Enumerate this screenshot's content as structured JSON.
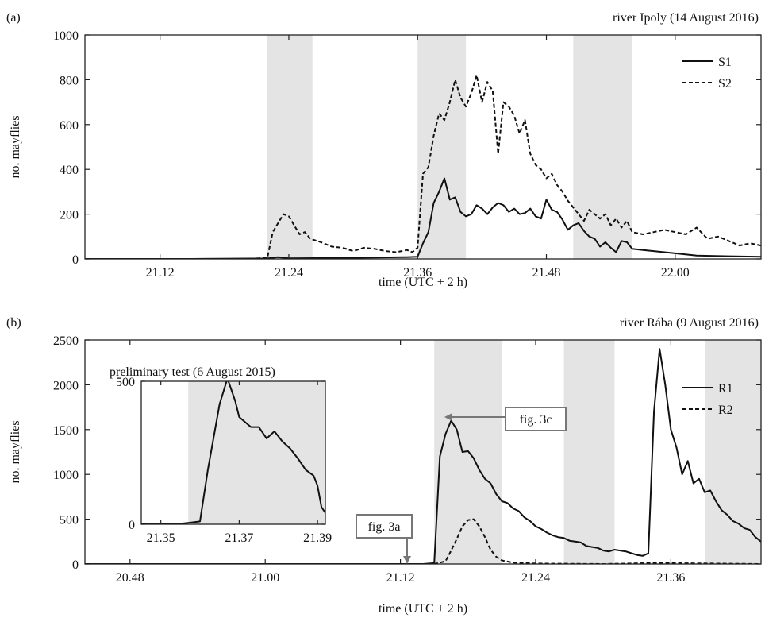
{
  "colors": {
    "shade": "#e3e4e3",
    "line": "#111111",
    "box": "#777777"
  },
  "chart_data": [
    {
      "panel_label": "(a)",
      "type": "line",
      "title": "river Ipoly (14 August 2016)",
      "xlabel": "time (UTC + 2 h)",
      "ylabel": "no. mayflies",
      "xlim": [
        21.05,
        22.08
      ],
      "ylim": [
        0,
        1000
      ],
      "xticks": [
        21.12,
        21.24,
        21.36,
        21.48,
        22.0
      ],
      "yticks": [
        0,
        200,
        400,
        600,
        800,
        1000
      ],
      "grid": false,
      "legend": "top-right",
      "shaded": [
        [
          21.22,
          21.262
        ],
        [
          21.36,
          21.405
        ],
        [
          21.505,
          21.56
        ]
      ],
      "series": [
        {
          "name": "S1",
          "style": "solid",
          "points": [
            [
              21.05,
              0
            ],
            [
              21.15,
              0
            ],
            [
              21.22,
              2
            ],
            [
              21.23,
              8
            ],
            [
              21.24,
              3
            ],
            [
              21.3,
              5
            ],
            [
              21.35,
              8
            ],
            [
              21.36,
              10
            ],
            [
              21.365,
              70
            ],
            [
              21.37,
              120
            ],
            [
              21.375,
              250
            ],
            [
              21.38,
              300
            ],
            [
              21.385,
              360
            ],
            [
              21.39,
              265
            ],
            [
              21.395,
              275
            ],
            [
              21.4,
              210
            ],
            [
              21.405,
              190
            ],
            [
              21.41,
              200
            ],
            [
              21.415,
              240
            ],
            [
              21.42,
              225
            ],
            [
              21.425,
              200
            ],
            [
              21.43,
              230
            ],
            [
              21.435,
              250
            ],
            [
              21.44,
              240
            ],
            [
              21.445,
              210
            ],
            [
              21.45,
              225
            ],
            [
              21.455,
              200
            ],
            [
              21.46,
              205
            ],
            [
              21.465,
              225
            ],
            [
              21.47,
              190
            ],
            [
              21.475,
              180
            ],
            [
              21.48,
              265
            ],
            [
              21.485,
              220
            ],
            [
              21.49,
              210
            ],
            [
              21.495,
              175
            ],
            [
              21.5,
              130
            ],
            [
              21.505,
              150
            ],
            [
              21.51,
              160
            ],
            [
              21.515,
              125
            ],
            [
              21.52,
              100
            ],
            [
              21.525,
              90
            ],
            [
              21.53,
              55
            ],
            [
              21.535,
              75
            ],
            [
              21.54,
              50
            ],
            [
              21.545,
              30
            ],
            [
              21.55,
              80
            ],
            [
              21.555,
              75
            ],
            [
              21.56,
              45
            ],
            [
              21.57,
              40
            ],
            [
              21.58,
              35
            ],
            [
              21.59,
              30
            ],
            [
              22.0,
              25
            ],
            [
              22.02,
              15
            ],
            [
              22.05,
              12
            ],
            [
              22.08,
              10
            ]
          ]
        },
        {
          "name": "S2",
          "style": "dashed",
          "points": [
            [
              21.05,
              0
            ],
            [
              21.2,
              0
            ],
            [
              21.22,
              5
            ],
            [
              21.225,
              120
            ],
            [
              21.23,
              160
            ],
            [
              21.235,
              200
            ],
            [
              21.24,
              190
            ],
            [
              21.245,
              150
            ],
            [
              21.25,
              110
            ],
            [
              21.255,
              120
            ],
            [
              21.26,
              90
            ],
            [
              21.27,
              75
            ],
            [
              21.28,
              55
            ],
            [
              21.29,
              50
            ],
            [
              21.3,
              35
            ],
            [
              21.31,
              50
            ],
            [
              21.32,
              45
            ],
            [
              21.33,
              35
            ],
            [
              21.34,
              30
            ],
            [
              21.35,
              40
            ],
            [
              21.355,
              30
            ],
            [
              21.36,
              50
            ],
            [
              21.365,
              380
            ],
            [
              21.37,
              410
            ],
            [
              21.375,
              550
            ],
            [
              21.38,
              650
            ],
            [
              21.385,
              620
            ],
            [
              21.39,
              700
            ],
            [
              21.395,
              800
            ],
            [
              21.4,
              720
            ],
            [
              21.405,
              680
            ],
            [
              21.41,
              740
            ],
            [
              21.415,
              820
            ],
            [
              21.42,
              700
            ],
            [
              21.425,
              790
            ],
            [
              21.43,
              750
            ],
            [
              21.435,
              470
            ],
            [
              21.44,
              700
            ],
            [
              21.445,
              680
            ],
            [
              21.45,
              640
            ],
            [
              21.455,
              560
            ],
            [
              21.46,
              620
            ],
            [
              21.465,
              470
            ],
            [
              21.47,
              420
            ],
            [
              21.475,
              400
            ],
            [
              21.48,
              360
            ],
            [
              21.485,
              380
            ],
            [
              21.49,
              330
            ],
            [
              21.495,
              300
            ],
            [
              21.5,
              260
            ],
            [
              21.505,
              230
            ],
            [
              21.51,
              200
            ],
            [
              21.515,
              170
            ],
            [
              21.52,
              220
            ],
            [
              21.525,
              200
            ],
            [
              21.53,
              180
            ],
            [
              21.535,
              200
            ],
            [
              21.54,
              150
            ],
            [
              21.545,
              180
            ],
            [
              21.55,
              140
            ],
            [
              21.555,
              170
            ],
            [
              21.56,
              120
            ],
            [
              21.57,
              110
            ],
            [
              21.58,
              120
            ],
            [
              21.59,
              130
            ],
            [
              22.0,
              120
            ],
            [
              22.01,
              110
            ],
            [
              22.02,
              140
            ],
            [
              22.03,
              90
            ],
            [
              22.04,
              100
            ],
            [
              22.05,
              80
            ],
            [
              22.06,
              60
            ],
            [
              22.07,
              70
            ],
            [
              22.08,
              60
            ]
          ]
        }
      ]
    },
    {
      "panel_label": "(b)",
      "type": "line",
      "title": "river Rába (9 August 2016)",
      "xlabel": "time (UTC + 2 h)",
      "ylabel": "no. mayflies",
      "xlim": [
        20.44,
        21.44
      ],
      "ylim": [
        0,
        2500
      ],
      "xticks": [
        20.48,
        21.0,
        21.12,
        21.24,
        21.36
      ],
      "yticks": [
        0,
        500,
        1000,
        1500,
        2000,
        2500
      ],
      "grid": false,
      "legend": "top-right",
      "shaded": [
        [
          21.15,
          21.21
        ],
        [
          21.265,
          21.31
        ],
        [
          21.39,
          21.44
        ]
      ],
      "annotations": [
        {
          "text": "fig. 3a",
          "x": 21.13,
          "y": 0
        },
        {
          "text": "fig. 3c",
          "x": 21.163,
          "y": 1600
        }
      ],
      "series": [
        {
          "name": "R1",
          "style": "solid",
          "points": [
            [
              20.44,
              0
            ],
            [
              21.1,
              0
            ],
            [
              21.14,
              0
            ],
            [
              21.15,
              10
            ],
            [
              21.155,
              1200
            ],
            [
              21.16,
              1450
            ],
            [
              21.165,
              1600
            ],
            [
              21.17,
              1500
            ],
            [
              21.175,
              1250
            ],
            [
              21.18,
              1260
            ],
            [
              21.185,
              1180
            ],
            [
              21.19,
              1050
            ],
            [
              21.195,
              950
            ],
            [
              21.2,
              900
            ],
            [
              21.205,
              780
            ],
            [
              21.21,
              700
            ],
            [
              21.215,
              680
            ],
            [
              21.22,
              620
            ],
            [
              21.225,
              590
            ],
            [
              21.23,
              520
            ],
            [
              21.235,
              480
            ],
            [
              21.24,
              420
            ],
            [
              21.245,
              390
            ],
            [
              21.25,
              350
            ],
            [
              21.255,
              320
            ],
            [
              21.26,
              300
            ],
            [
              21.265,
              290
            ],
            [
              21.27,
              260
            ],
            [
              21.275,
              250
            ],
            [
              21.28,
              240
            ],
            [
              21.285,
              200
            ],
            [
              21.29,
              190
            ],
            [
              21.295,
              180
            ],
            [
              21.3,
              150
            ],
            [
              21.305,
              140
            ],
            [
              21.31,
              160
            ],
            [
              21.315,
              150
            ],
            [
              21.32,
              140
            ],
            [
              21.325,
              120
            ],
            [
              21.33,
              100
            ],
            [
              21.335,
              90
            ],
            [
              21.34,
              120
            ],
            [
              21.345,
              1700
            ],
            [
              21.35,
              2400
            ],
            [
              21.355,
              2000
            ],
            [
              21.36,
              1500
            ],
            [
              21.365,
              1300
            ],
            [
              21.37,
              1000
            ],
            [
              21.375,
              1150
            ],
            [
              21.38,
              900
            ],
            [
              21.385,
              950
            ],
            [
              21.39,
              800
            ],
            [
              21.395,
              820
            ],
            [
              21.4,
              700
            ],
            [
              21.405,
              600
            ],
            [
              21.41,
              550
            ],
            [
              21.415,
              480
            ],
            [
              21.42,
              450
            ],
            [
              21.425,
              400
            ],
            [
              21.43,
              380
            ],
            [
              21.435,
              300
            ],
            [
              21.44,
              250
            ]
          ]
        },
        {
          "name": "R2",
          "style": "dashed",
          "points": [
            [
              20.44,
              0
            ],
            [
              21.15,
              0
            ],
            [
              21.16,
              30
            ],
            [
              21.165,
              150
            ],
            [
              21.17,
              280
            ],
            [
              21.175,
              420
            ],
            [
              21.18,
              490
            ],
            [
              21.185,
              500
            ],
            [
              21.19,
              420
            ],
            [
              21.195,
              300
            ],
            [
              21.2,
              160
            ],
            [
              21.205,
              80
            ],
            [
              21.21,
              40
            ],
            [
              21.22,
              15
            ],
            [
              21.24,
              5
            ],
            [
              21.3,
              0
            ],
            [
              21.34,
              10
            ],
            [
              21.36,
              10
            ],
            [
              21.44,
              0
            ]
          ]
        }
      ],
      "inset": {
        "type": "line",
        "title": "preliminary test (6 August 2015)",
        "xlim": [
          21.345,
          21.392
        ],
        "ylim": [
          0,
          500
        ],
        "xticks": [
          21.35,
          21.37,
          21.39
        ],
        "yticks": [
          0,
          500
        ],
        "shaded": [
          [
            21.357,
            21.392
          ]
        ],
        "points": [
          [
            21.345,
            0
          ],
          [
            21.35,
            0
          ],
          [
            21.355,
            2
          ],
          [
            21.357,
            5
          ],
          [
            21.36,
            10
          ],
          [
            21.362,
            190
          ],
          [
            21.365,
            420
          ],
          [
            21.367,
            510
          ],
          [
            21.369,
            430
          ],
          [
            21.37,
            375
          ],
          [
            21.373,
            340
          ],
          [
            21.375,
            340
          ],
          [
            21.377,
            300
          ],
          [
            21.379,
            325
          ],
          [
            21.381,
            290
          ],
          [
            21.383,
            265
          ],
          [
            21.385,
            230
          ],
          [
            21.387,
            190
          ],
          [
            21.389,
            170
          ],
          [
            21.39,
            135
          ],
          [
            21.391,
            60
          ],
          [
            21.392,
            40
          ]
        ]
      }
    }
  ]
}
